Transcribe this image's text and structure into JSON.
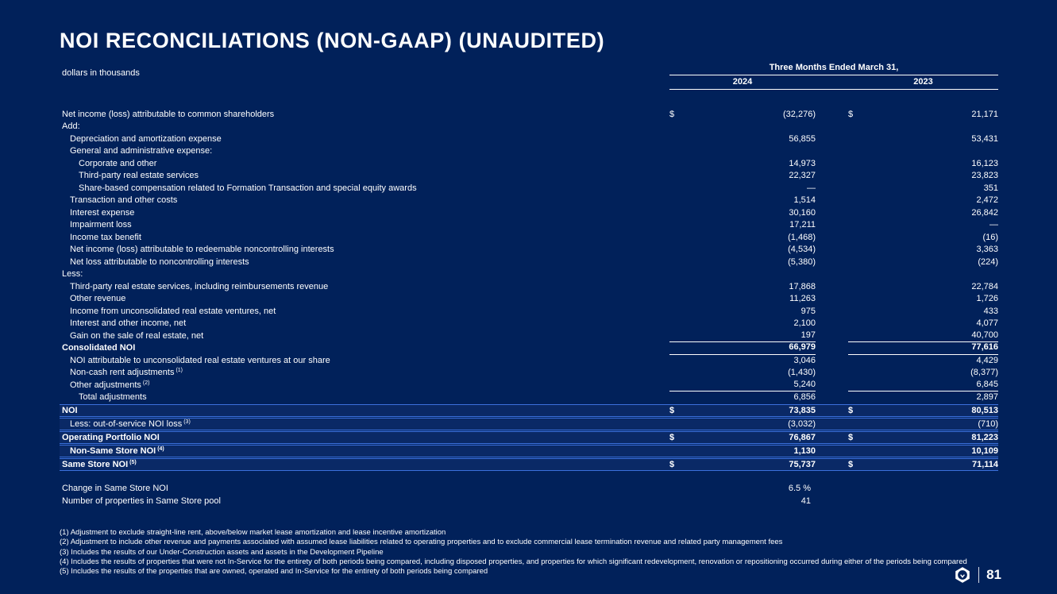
{
  "slide": {
    "title": "NOI RECONCILIATIONS (NON-GAAP) (UNAUDITED)",
    "subtitle": "dollars in thousands",
    "page_number": "81",
    "logo_icon": "hexagon-company-logo",
    "colors": {
      "background": "#01215A",
      "text": "#FFFFFF",
      "highlight_row_bg": "#0A2966",
      "highlight_line": "#3B70DC",
      "rule_line": "#FFFFFF"
    }
  },
  "table": {
    "header": {
      "group_label": "Three Months Ended March 31,",
      "col_2024": "2024",
      "col_2023": "2023"
    },
    "rows": [
      {
        "label": "Net income (loss) attributable to common shareholders",
        "ind": 0,
        "d24": "$",
        "v24": "(32,276)",
        "d23": "$",
        "v23": "21,171"
      },
      {
        "label": "Add:",
        "ind": 0
      },
      {
        "label": "Depreciation and amortization expense",
        "ind": 1,
        "v24": "56,855",
        "v23": "53,431"
      },
      {
        "label": "General and administrative expense:",
        "ind": 1
      },
      {
        "label": "Corporate and other",
        "ind": 2,
        "v24": "14,973",
        "v23": "16,123"
      },
      {
        "label": "Third-party real estate services",
        "ind": 2,
        "v24": "22,327",
        "v23": "23,823"
      },
      {
        "label": "Share-based compensation related to Formation Transaction and special equity awards",
        "ind": 2,
        "v24": "—",
        "v23": "351"
      },
      {
        "label": "Transaction and other costs",
        "ind": 1,
        "v24": "1,514",
        "v23": "2,472"
      },
      {
        "label": "Interest expense",
        "ind": 1,
        "v24": "30,160",
        "v23": "26,842"
      },
      {
        "label": "Impairment loss",
        "ind": 1,
        "v24": "17,211",
        "v23": "—"
      },
      {
        "label": "Income tax benefit",
        "ind": 1,
        "v24": "(1,468)",
        "v23": "(16)"
      },
      {
        "label": "Net income (loss) attributable to redeemable noncontrolling interests",
        "ind": 1,
        "v24": "(4,534)",
        "v23": "3,363"
      },
      {
        "label": "Net loss attributable to noncontrolling interests",
        "ind": 1,
        "v24": "(5,380)",
        "v23": "(224)"
      },
      {
        "label": "Less:",
        "ind": 0
      },
      {
        "label": "Third-party real estate services, including reimbursements revenue",
        "ind": 1,
        "v24": "17,868",
        "v23": "22,784"
      },
      {
        "label": "Other revenue",
        "ind": 1,
        "v24": "11,263",
        "v23": "1,726"
      },
      {
        "label": "Income from unconsolidated real estate ventures, net",
        "ind": 1,
        "v24": "975",
        "v23": "433"
      },
      {
        "label": "Interest and other income, net",
        "ind": 1,
        "v24": "2,100",
        "v23": "4,077"
      },
      {
        "label": "Gain on the sale of real estate, net",
        "ind": 1,
        "v24": "197",
        "v23": "40,700",
        "u": true
      },
      {
        "label": "Consolidated NOI",
        "ind": 0,
        "bold": true,
        "v24": "66,979",
        "v23": "77,616",
        "u": true
      },
      {
        "label": "NOI attributable to unconsolidated real estate ventures at our share",
        "ind": 1,
        "v24": "3,046",
        "v23": "4,429"
      },
      {
        "label": "Non-cash rent adjustments",
        "sup": "(1)",
        "ind": 1,
        "v24": "(1,430)",
        "v23": "(8,377)"
      },
      {
        "label": "Other adjustments",
        "sup": "(2)",
        "ind": 1,
        "v24": "5,240",
        "v23": "6,845",
        "u": true
      },
      {
        "label": "Total adjustments",
        "ind": 2,
        "v24": "6,856",
        "v23": "2,897"
      },
      {
        "label": "NOI",
        "ind": 0,
        "bold": true,
        "box": true,
        "d24": "$",
        "v24": "73,835",
        "d23": "$",
        "v23": "80,513"
      },
      {
        "label": "Less: out-of-service NOI loss",
        "sup": "(3)",
        "ind": 1,
        "box": true,
        "v24": "(3,032)",
        "v23": "(710)"
      },
      {
        "label": "Operating Portfolio NOI",
        "ind": 0,
        "bold": true,
        "box": true,
        "d24": "$",
        "v24": "76,867",
        "d23": "$",
        "v23": "81,223"
      },
      {
        "label": "Non-Same Store NOI",
        "sup": "(4)",
        "ind": 1,
        "bold": true,
        "box": true,
        "v24": "1,130",
        "v23": "10,109"
      },
      {
        "label": "Same Store NOI",
        "sup": "(5)",
        "ind": 0,
        "bold": true,
        "box": true,
        "d24": "$",
        "v24": "75,737",
        "d23": "$",
        "v23": "71,114"
      }
    ]
  },
  "stats": [
    {
      "label": "Change in Same Store NOI",
      "value": "6.5 %"
    },
    {
      "label": "Number of properties in Same Store pool",
      "value": "41"
    }
  ],
  "footnotes": [
    "(1) Adjustment to exclude straight-line rent, above/below market lease amortization and lease incentive amortization",
    "(2) Adjustment to include other revenue and payments associated with assumed lease liabilities related to operating properties and to exclude commercial lease termination revenue and related party management fees",
    "(3) Includes the results of our Under-Construction assets and assets in the Development Pipeline",
    "(4) Includes the results of properties that were not In-Service for the entirety of both periods being compared, including disposed properties, and properties for which significant redevelopment, renovation or repositioning occurred during either of the periods being compared",
    "(5) Includes the results of the properties that are owned, operated and In-Service for the entirety of both periods being compared"
  ]
}
